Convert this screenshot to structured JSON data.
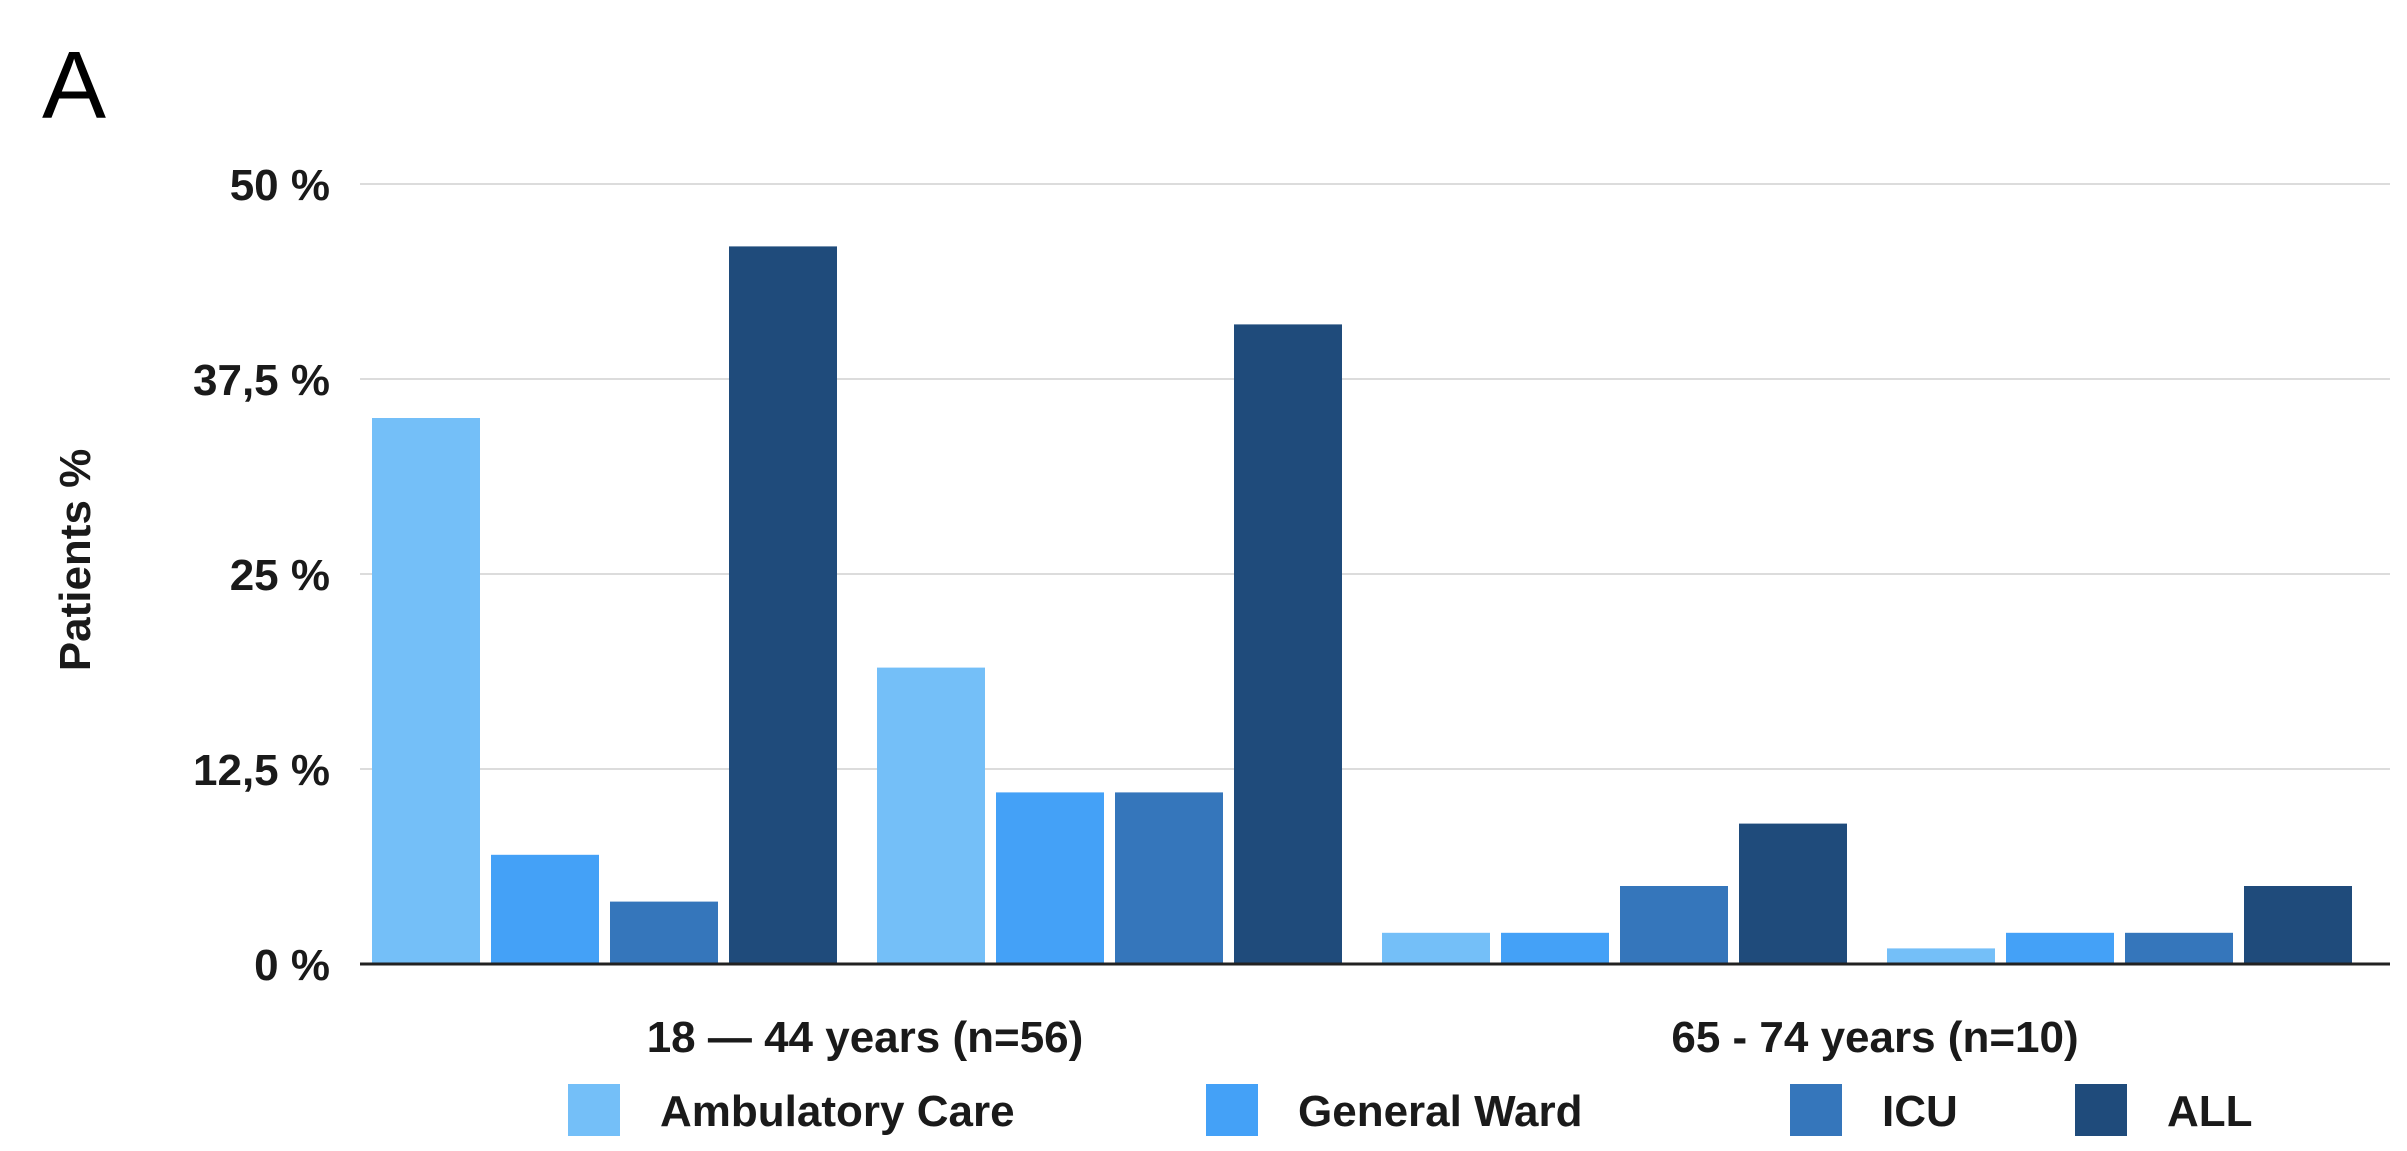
{
  "panel_label": "A",
  "chart_data": {
    "type": "bar",
    "title": "",
    "xlabel": "",
    "ylabel": "Patients %",
    "ylim": [
      0,
      50
    ],
    "y_ticks": [
      0,
      12.5,
      25,
      37.5,
      50
    ],
    "y_tick_labels": [
      "0 %",
      "12,5 %",
      "25 %",
      "37,5 %",
      "50 %"
    ],
    "grid": true,
    "legend_position": "bottom",
    "categories": [
      "18 — 44 years (n=56)",
      "",
      "65 - 74 years (n=10)",
      ""
    ],
    "series": [
      {
        "name": "Ambulatory Care",
        "color": "#74bff8",
        "values": [
          35,
          19,
          2,
          1
        ]
      },
      {
        "name": "General Ward",
        "color": "#44a1f7",
        "values": [
          7,
          11,
          2,
          2
        ]
      },
      {
        "name": "ICU",
        "color": "#3576bb",
        "values": [
          4,
          11,
          5,
          2
        ]
      },
      {
        "name": "ALL",
        "color": "#1f4b7b",
        "values": [
          46,
          41,
          9,
          5
        ]
      }
    ]
  }
}
